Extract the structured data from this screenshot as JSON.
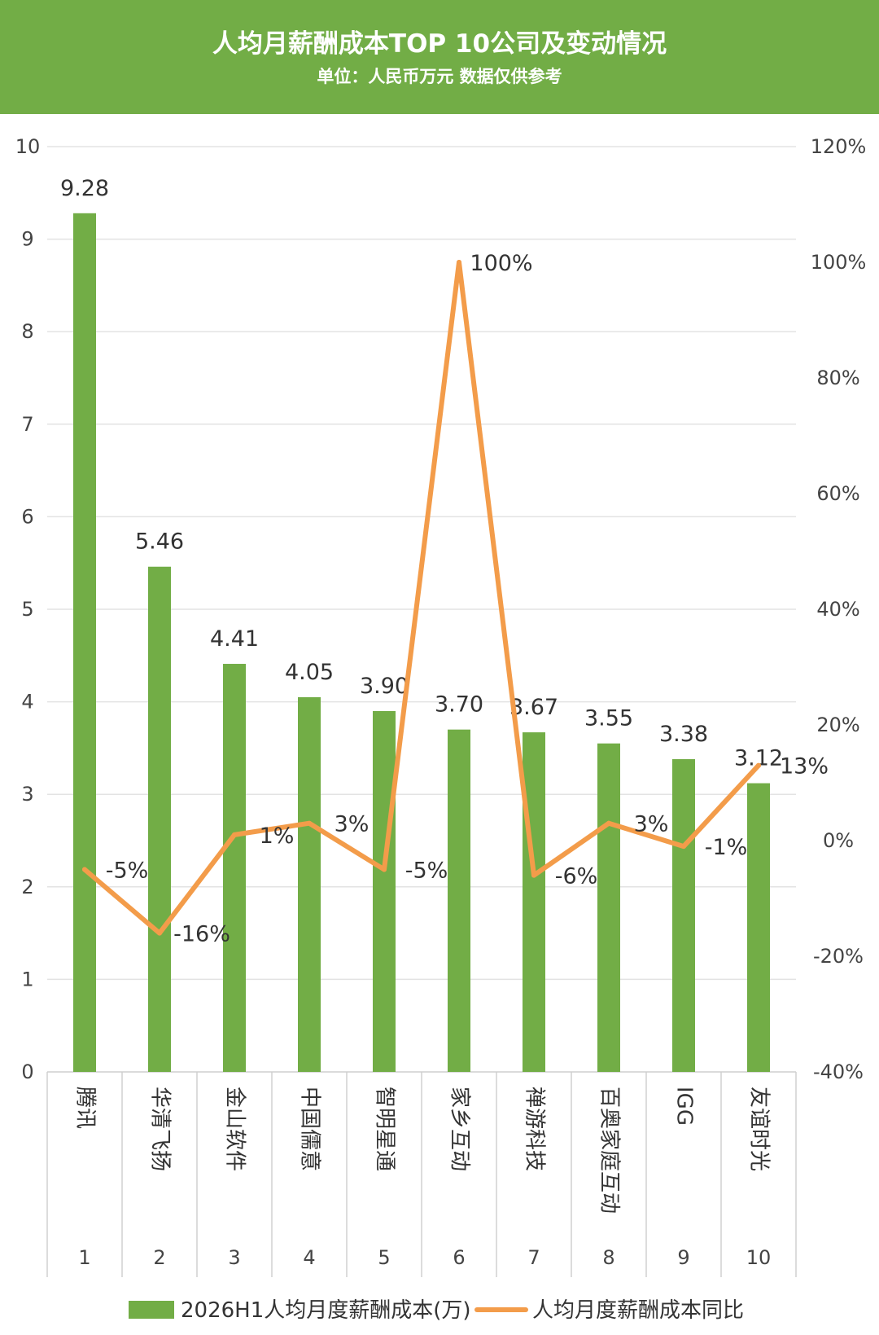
{
  "header": {
    "title": "人均月薪酬成本TOP 10公司及变动情况",
    "subtitle": "单位：人民币万元 数据仅供参考"
  },
  "colors": {
    "header_bg": "#72ad46",
    "bar": "#72ad46",
    "line": "#f39c4a",
    "grid": "#e3e3e3"
  },
  "chart_data": {
    "type": "bar+line",
    "title": "人均月薪酬成本TOP 10公司及变动情况",
    "subtitle": "单位：人民币万元 数据仅供参考",
    "categories": [
      "腾讯",
      "华清飞扬",
      "金山软件",
      "中国儒意",
      "智明星通",
      "家乡互动",
      "禅游科技",
      "百奥家庭互动",
      "IGG",
      "友谊时光"
    ],
    "ranks": [
      "1",
      "2",
      "3",
      "4",
      "5",
      "6",
      "7",
      "8",
      "9",
      "10"
    ],
    "series": [
      {
        "name": "2026H1人均月度薪酬成本(万)",
        "type": "bar",
        "axis": "left",
        "values": [
          9.28,
          5.46,
          4.41,
          4.05,
          3.9,
          3.7,
          3.67,
          3.55,
          3.38,
          3.12
        ],
        "labels": [
          "9.28",
          "5.46",
          "4.41",
          "4.05",
          "3.90",
          "3.70",
          "3.67",
          "3.55",
          "3.38",
          "3.12"
        ]
      },
      {
        "name": "人均月度薪酬成本同比",
        "type": "line",
        "axis": "right",
        "values": [
          -5,
          -16,
          1,
          3,
          -5,
          100,
          -6,
          3,
          -1,
          13
        ],
        "labels": [
          "-5%",
          "-16%",
          "1%",
          "3%",
          "-5%",
          "100%",
          "-6%",
          "3%",
          "-1%",
          "13%"
        ]
      }
    ],
    "y_left": {
      "range": [
        0,
        10
      ],
      "ticks": [
        "0",
        "1",
        "2",
        "3",
        "4",
        "5",
        "6",
        "7",
        "8",
        "9",
        "10"
      ]
    },
    "y_right": {
      "range": [
        -40,
        120
      ],
      "ticks": [
        "-40%",
        "-20%",
        "0%",
        "20%",
        "40%",
        "60%",
        "80%",
        "100%",
        "120%"
      ]
    },
    "grid": true,
    "legend": "bottom"
  }
}
